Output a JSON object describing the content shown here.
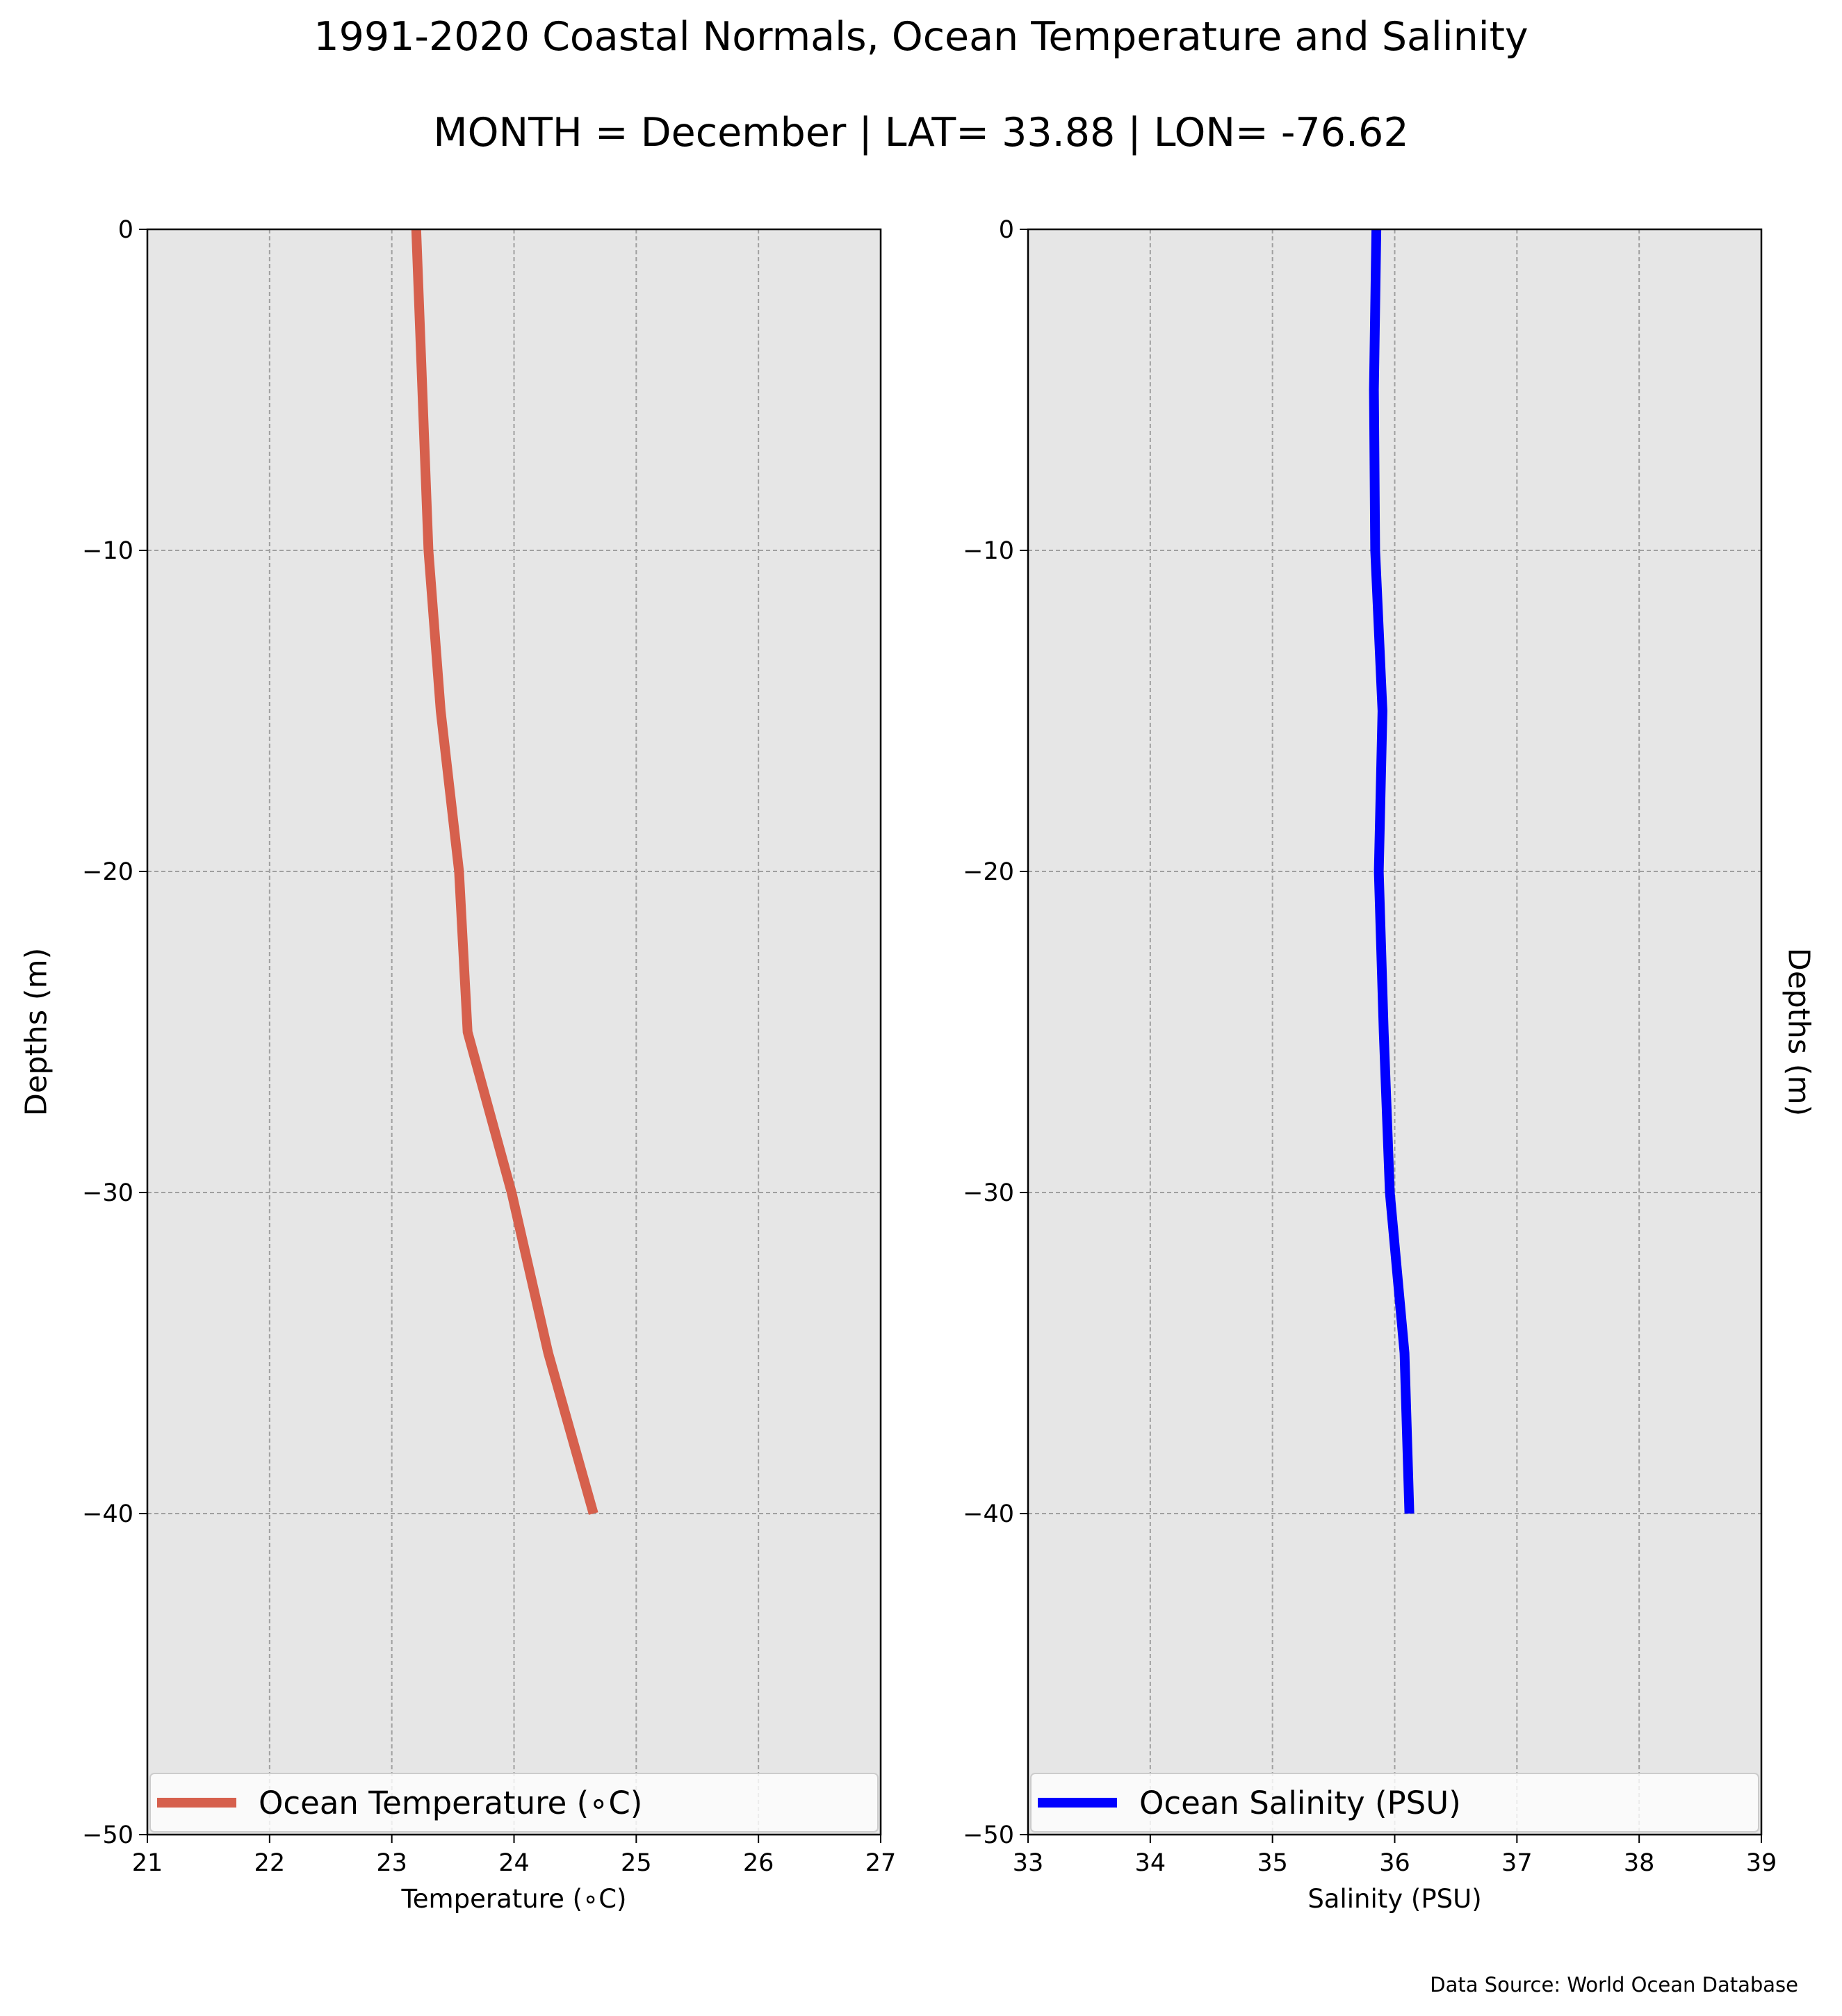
{
  "title": "1991-2020 Coastal Normals, Ocean Temperature and Salinity",
  "subtitle": "MONTH = December | LAT= 33.88 | LON= -76.62",
  "source": "Data Source: World Ocean Database",
  "chart_data": [
    {
      "type": "line",
      "xlabel": "Temperature (∘C)",
      "ylabel": "Depths (m)",
      "xlim": [
        21,
        27
      ],
      "ylim": [
        -50,
        0
      ],
      "xticks": [
        "21",
        "22",
        "23",
        "24",
        "25",
        "26",
        "27"
      ],
      "yticks": [
        "0",
        "−10",
        "−20",
        "−30",
        "−40",
        "−50"
      ],
      "grid": true,
      "legend_position": "bottom",
      "color": "#d6604d",
      "series": [
        {
          "name": "Ocean Temperature (∘C)",
          "x": [
            23.2,
            23.25,
            23.3,
            23.4,
            23.55,
            23.62,
            23.98,
            24.28,
            24.65
          ],
          "y": [
            0,
            -5,
            -10,
            -15,
            -20,
            -25,
            -30,
            -35,
            -40
          ]
        }
      ]
    },
    {
      "type": "line",
      "xlabel": "Salinity (PSU)",
      "ylabel": "Depths (m)",
      "xlim": [
        33,
        39
      ],
      "ylim": [
        -50,
        0
      ],
      "xticks": [
        "33",
        "34",
        "35",
        "36",
        "37",
        "38",
        "39"
      ],
      "yticks": [
        "0",
        "−10",
        "−20",
        "−30",
        "−40",
        "−50"
      ],
      "grid": true,
      "legend_position": "bottom",
      "color": "#0000ff",
      "series": [
        {
          "name": "Ocean Salinity (PSU)",
          "x": [
            35.85,
            35.83,
            35.84,
            35.9,
            35.87,
            35.91,
            35.96,
            36.08,
            36.12
          ],
          "y": [
            0,
            -5,
            -10,
            -15,
            -20,
            -25,
            -30,
            -35,
            -40
          ]
        }
      ]
    }
  ]
}
